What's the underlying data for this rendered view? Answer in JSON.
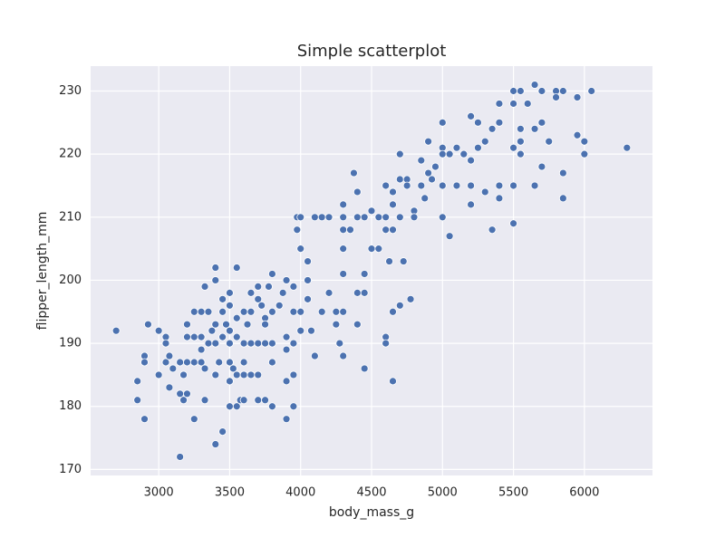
{
  "chart_data": {
    "type": "scatter",
    "title": "Simple scatterplot",
    "x_label": "body_mass_g",
    "y_label": "flipper_length_mm",
    "x": [
      2700,
      2850,
      2850,
      2900,
      2900,
      2925,
      2900,
      3000,
      3000,
      3050,
      3050,
      3050,
      3075,
      3075,
      3100,
      3150,
      3150,
      3150,
      3175,
      3175,
      3200,
      3200,
      3200,
      3200,
      3250,
      3250,
      3250,
      3250,
      3300,
      3300,
      3300,
      3300,
      3325,
      3325,
      3325,
      3350,
      3350,
      3375,
      3400,
      3400,
      3400,
      3400,
      3400,
      3400,
      3425,
      3450,
      3450,
      3450,
      3450,
      3475,
      3500,
      3500,
      3500,
      3500,
      3500,
      3500,
      3500,
      3525,
      3550,
      3550,
      3550,
      3550,
      3550,
      3575,
      3600,
      3600,
      3600,
      3600,
      3600,
      3625,
      3650,
      3650,
      3650,
      3650,
      3700,
      3700,
      3700,
      3700,
      3700,
      3725,
      3750,
      3750,
      3750,
      3750,
      3775,
      3800,
      3800,
      3800,
      3800,
      3800,
      3850,
      3875,
      3900,
      3900,
      3900,
      3900,
      3900,
      3950,
      3950,
      3950,
      3950,
      3950,
      3975,
      3975,
      4000,
      4000,
      4000,
      4000,
      4050,
      4050,
      4050,
      4075,
      4100,
      4100,
      4150,
      4150,
      4200,
      4200,
      4250,
      4250,
      4275,
      4300,
      4300,
      4300,
      4300,
      4300,
      4300,
      4300,
      4350,
      4375,
      4400,
      4400,
      4400,
      4400,
      4450,
      4450,
      4450,
      4450,
      4500,
      4500,
      4550,
      4550,
      4600,
      4600,
      4600,
      4600,
      4600,
      4625,
      4650,
      4650,
      4650,
      4650,
      4650,
      4700,
      4700,
      4700,
      4700,
      4725,
      4750,
      4750,
      4775,
      4800,
      4800,
      4850,
      4850,
      4875,
      4900,
      4900,
      4925,
      4950,
      5000,
      5000,
      5000,
      5000,
      5000,
      5050,
      5050,
      5100,
      5100,
      5150,
      5200,
      5200,
      5200,
      5200,
      5250,
      5250,
      5300,
      5300,
      5350,
      5350,
      5400,
      5400,
      5400,
      5400,
      5500,
      5500,
      5500,
      5500,
      5500,
      5550,
      5550,
      5550,
      5550,
      5600,
      5650,
      5650,
      5650,
      5700,
      5700,
      5700,
      5750,
      5800,
      5800,
      5850,
      5850,
      5850,
      5950,
      5950,
      6000,
      6000,
      6050,
      6300
    ],
    "values": [
      192,
      184,
      181,
      188,
      187,
      193,
      178,
      192,
      185,
      191,
      190,
      187,
      183,
      188,
      186,
      187,
      182,
      172,
      185,
      181,
      193,
      191,
      187,
      182,
      195,
      191,
      187,
      178,
      195,
      191,
      189,
      187,
      199,
      186,
      181,
      195,
      190,
      192,
      202,
      200,
      193,
      190,
      185,
      174,
      187,
      197,
      195,
      191,
      176,
      193,
      198,
      196,
      192,
      190,
      187,
      184,
      180,
      186,
      202,
      194,
      191,
      185,
      180,
      181,
      195,
      190,
      187,
      185,
      181,
      193,
      198,
      195,
      190,
      185,
      199,
      197,
      190,
      185,
      181,
      196,
      194,
      193,
      190,
      181,
      199,
      201,
      195,
      190,
      187,
      180,
      196,
      198,
      200,
      191,
      189,
      184,
      178,
      199,
      195,
      190,
      185,
      180,
      208,
      210,
      210,
      205,
      195,
      192,
      203,
      200,
      197,
      192,
      210,
      188,
      210,
      195,
      210,
      198,
      193,
      195,
      190,
      212,
      210,
      208,
      205,
      201,
      195,
      188,
      208,
      217,
      214,
      210,
      198,
      193,
      210,
      201,
      198,
      186,
      211,
      205,
      210,
      205,
      215,
      210,
      208,
      191,
      190,
      203,
      214,
      212,
      208,
      184,
      195,
      220,
      216,
      210,
      196,
      203,
      216,
      215,
      197,
      211,
      210,
      219,
      215,
      213,
      222,
      217,
      216,
      218,
      225,
      221,
      220,
      215,
      210,
      220,
      207,
      221,
      215,
      220,
      226,
      219,
      212,
      215,
      225,
      221,
      222,
      214,
      224,
      208,
      228,
      225,
      215,
      213,
      230,
      228,
      221,
      215,
      209,
      230,
      224,
      222,
      220,
      228,
      231,
      224,
      215,
      230,
      225,
      218,
      222,
      230,
      229,
      230,
      217,
      213,
      229,
      223,
      222,
      220,
      230,
      221
    ],
    "color": "#4c72b0",
    "xlim": [
      2520,
      6480
    ],
    "ylim": [
      169.05,
      233.95
    ],
    "xticks": [
      3000,
      3500,
      4000,
      4500,
      5000,
      5500,
      6000
    ],
    "yticks": [
      170,
      180,
      190,
      200,
      210,
      220,
      230
    ],
    "grid": true
  }
}
